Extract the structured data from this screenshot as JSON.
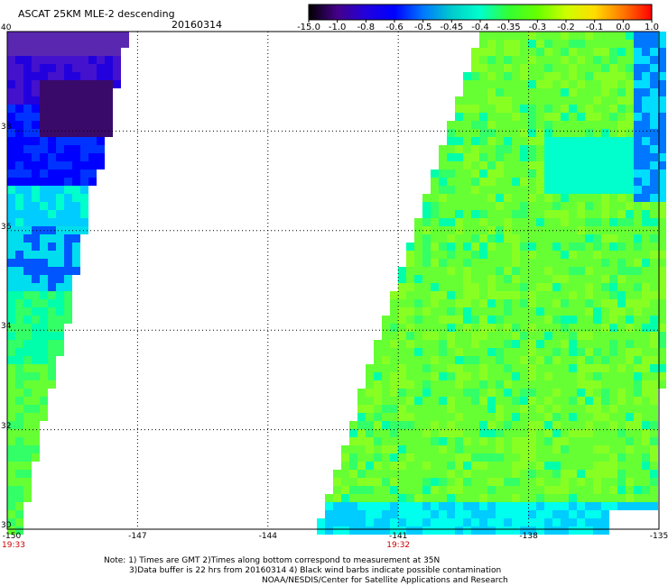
{
  "header": {
    "title": "ASCAT 25KM MLE-2 descending",
    "date": "20160314"
  },
  "colorbar": {
    "labels": [
      "-15.0",
      "-1.0",
      "-0.8",
      "-0.6",
      "-0.5",
      "-0.45",
      "-0.4",
      "-0.35",
      "-0.3",
      "-0.2",
      "-0.1",
      "0.0",
      "1.0"
    ],
    "colors": [
      "#000000",
      "#440088",
      "#2200dd",
      "#0000ff",
      "#0077ff",
      "#00cccc",
      "#00ffcc",
      "#33ff33",
      "#66ff00",
      "#ccff00",
      "#ffdd00",
      "#ff7700",
      "#ff0000"
    ]
  },
  "map": {
    "lon_ticks": [
      "-150",
      "-147",
      "-144",
      "-141",
      "-138",
      "-135"
    ],
    "lat_ticks": [
      "40",
      "38",
      "36",
      "34",
      "32",
      "30"
    ],
    "timestamps": [
      {
        "text": "19:33",
        "lon": -150
      },
      {
        "text": "19:32",
        "lon": -141
      }
    ]
  },
  "notes": [
    "Note: 1) Times are GMT 2)Times along bottom correspond to measurement at 35N",
    "3)Data buffer is 22 hrs from 20160314 4) Black wind barbs indicate possible contamination",
    "NOAA/NESDIS/Center for Satellite Applications and Research"
  ]
}
